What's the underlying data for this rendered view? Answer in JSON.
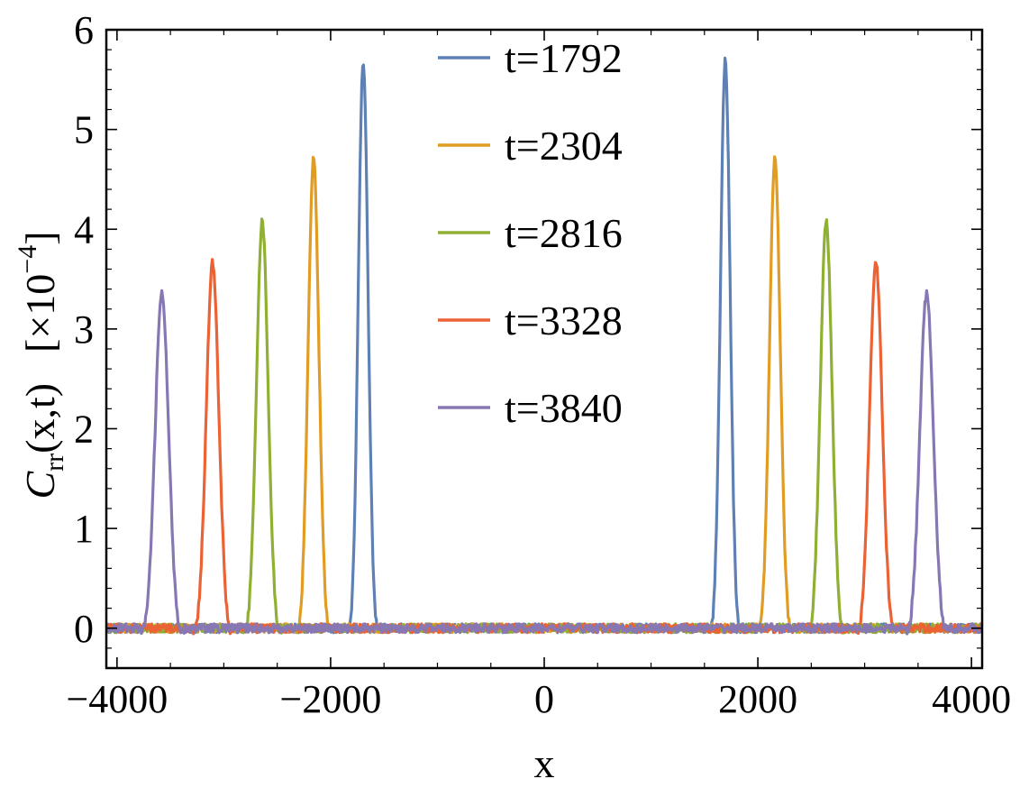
{
  "chart_data": {
    "type": "line",
    "xlabel": "x",
    "ylabel_main": "C",
    "ylabel_sub": "rr",
    "ylabel_args": "(x,t)",
    "ylabel_scale": "[×10",
    "ylabel_scale_exp": "−4",
    "ylabel_scale_close": "]",
    "xlim": [
      -4100,
      4100
    ],
    "ylim": [
      -0.4,
      6
    ],
    "xticks": [
      {
        "value": -4000,
        "label": "−4000"
      },
      {
        "value": -2000,
        "label": "−2000"
      },
      {
        "value": 0,
        "label": "0"
      },
      {
        "value": 2000,
        "label": "2000"
      },
      {
        "value": 4000,
        "label": "4000"
      }
    ],
    "yticks": [
      {
        "value": 0,
        "label": "0"
      },
      {
        "value": 1,
        "label": "1"
      },
      {
        "value": 2,
        "label": "2"
      },
      {
        "value": 3,
        "label": "3"
      },
      {
        "value": 4,
        "label": "4"
      },
      {
        "value": 5,
        "label": "5"
      },
      {
        "value": 6,
        "label": "6"
      }
    ],
    "grid": false,
    "legend_position": "top-center",
    "series": [
      {
        "name": "t=1792",
        "color": "#5e81b5",
        "peak_x": 1695,
        "peak_y": 5.7,
        "width": 45
      },
      {
        "name": "t=2304",
        "color": "#e19c24",
        "peak_x": 2160,
        "peak_y": 4.7,
        "width": 50
      },
      {
        "name": "t=2816",
        "color": "#8fb032",
        "peak_x": 2640,
        "peak_y": 4.08,
        "width": 54
      },
      {
        "name": "t=3328",
        "color": "#eb6235",
        "peak_x": 3105,
        "peak_y": 3.66,
        "width": 58
      },
      {
        "name": "t=3840",
        "color": "#8778b3",
        "peak_x": 3580,
        "peak_y": 3.35,
        "width": 62
      }
    ]
  }
}
